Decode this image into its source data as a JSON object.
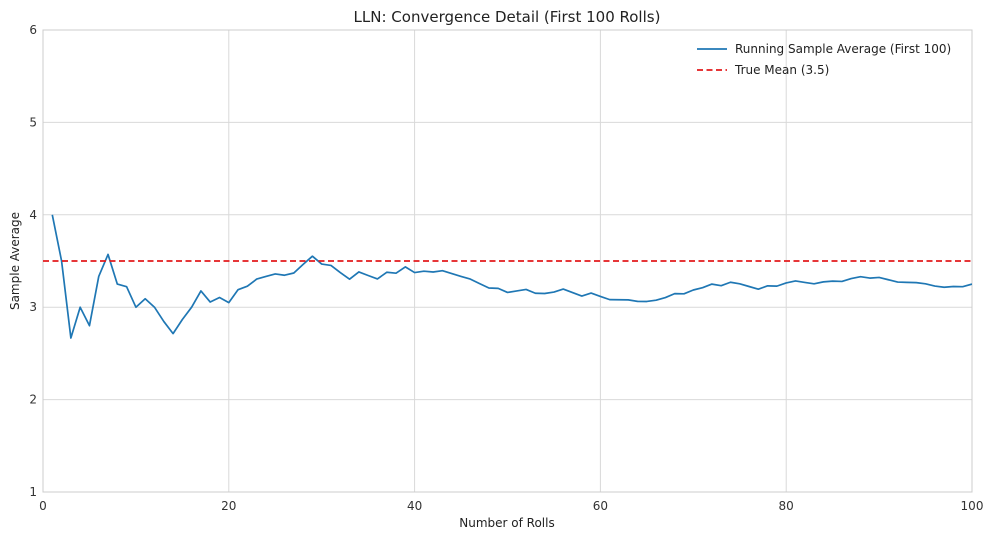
{
  "chart_data": {
    "type": "line",
    "title": "LLN: Convergence Detail (First 100 Rolls)",
    "xlabel": "Number of Rolls",
    "ylabel": "Sample Average",
    "xlim": [
      0,
      100
    ],
    "ylim": [
      1,
      6
    ],
    "xticks": [
      0,
      20,
      40,
      60,
      80,
      100
    ],
    "yticks": [
      1,
      2,
      3,
      4,
      5,
      6
    ],
    "grid": true,
    "legend_position": "top-right",
    "series": [
      {
        "name": "Running Sample Average (First 100)",
        "color": "#1f77b4",
        "style": "solid",
        "x": [
          1,
          2,
          3,
          4,
          5,
          6,
          7,
          8,
          9,
          10,
          11,
          12,
          13,
          14,
          15,
          16,
          17,
          18,
          19,
          20,
          21,
          22,
          23,
          24,
          25,
          26,
          27,
          28,
          29,
          30,
          31,
          32,
          33,
          34,
          35,
          36,
          37,
          38,
          39,
          40,
          41,
          42,
          43,
          44,
          45,
          46,
          47,
          48,
          49,
          50,
          51,
          52,
          53,
          54,
          55,
          56,
          57,
          58,
          59,
          60,
          61,
          62,
          63,
          64,
          65,
          66,
          67,
          68,
          69,
          70,
          71,
          72,
          73,
          74,
          75,
          76,
          77,
          78,
          79,
          80,
          81,
          82,
          83,
          84,
          85,
          86,
          87,
          88,
          89,
          90,
          91,
          92,
          93,
          94,
          95,
          96,
          97,
          98,
          99,
          100
        ],
        "y": [
          4.0,
          3.5,
          2.667,
          3.0,
          2.8,
          3.333,
          3.571,
          3.25,
          3.222,
          3.0,
          3.091,
          3.0,
          2.846,
          2.714,
          2.867,
          3.0,
          3.176,
          3.056,
          3.105,
          3.05,
          3.19,
          3.227,
          3.304,
          3.333,
          3.36,
          3.346,
          3.37,
          3.464,
          3.552,
          3.467,
          3.452,
          3.375,
          3.303,
          3.382,
          3.343,
          3.306,
          3.378,
          3.368,
          3.436,
          3.375,
          3.39,
          3.381,
          3.395,
          3.364,
          3.333,
          3.304,
          3.255,
          3.208,
          3.204,
          3.16,
          3.176,
          3.192,
          3.151,
          3.148,
          3.164,
          3.196,
          3.158,
          3.121,
          3.153,
          3.117,
          3.082,
          3.081,
          3.079,
          3.063,
          3.062,
          3.076,
          3.104,
          3.147,
          3.145,
          3.186,
          3.211,
          3.25,
          3.233,
          3.27,
          3.253,
          3.224,
          3.195,
          3.231,
          3.228,
          3.263,
          3.284,
          3.268,
          3.253,
          3.274,
          3.282,
          3.279,
          3.31,
          3.33,
          3.315,
          3.322,
          3.297,
          3.272,
          3.269,
          3.266,
          3.253,
          3.229,
          3.216,
          3.224,
          3.222,
          3.25
        ]
      },
      {
        "name": "True Mean (3.5)",
        "color": "#e31a1c",
        "style": "dashed",
        "x": [
          0,
          100
        ],
        "y": [
          3.5,
          3.5
        ]
      }
    ]
  }
}
